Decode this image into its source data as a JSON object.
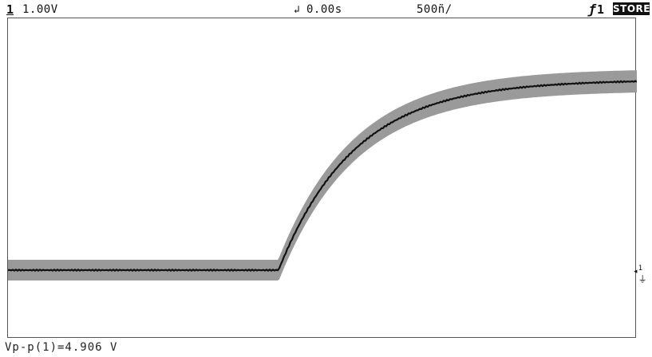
{
  "status": {
    "channel": "1",
    "channel_scale": "1.00V",
    "delay_icon": "trigger-delay-icon",
    "delay": "0.00s",
    "time_scale": "500ñ/",
    "trigger_icon": "trigger-edge-icon",
    "trigger_source": "1",
    "mode": "STORE"
  },
  "measurement": {
    "text": "Vp-p(1)=4.906 V"
  },
  "ground_marker": {
    "icon": "ground-reference-icon",
    "channel": "1"
  },
  "colors": {
    "trace": "#111111",
    "envelope": "#9a9a9a",
    "background": "#ffffff"
  }
}
